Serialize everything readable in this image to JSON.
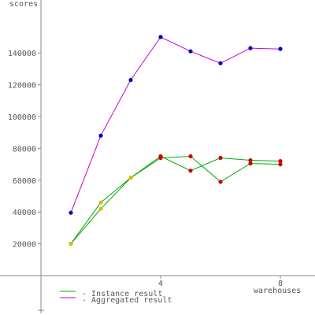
{
  "chart_data": {
    "type": "line",
    "title": "",
    "ylabel": "scores",
    "xlabel": "warehouses",
    "xlim": [
      0,
      9.5
    ],
    "ylim": [
      -20000,
      170000
    ],
    "x_ticks": [
      {
        "value": 4,
        "label": "4"
      },
      {
        "value": 8,
        "label": "8"
      }
    ],
    "y_ticks": [
      {
        "value": 20000,
        "label": "20000"
      },
      {
        "value": 40000,
        "label": "40000"
      },
      {
        "value": 60000,
        "label": "60000"
      },
      {
        "value": 80000,
        "label": "80000"
      },
      {
        "value": 100000,
        "label": "100000"
      },
      {
        "value": 120000,
        "label": "120000"
      },
      {
        "value": 140000,
        "label": "140000"
      }
    ],
    "series": [
      {
        "name": "Instance result",
        "color": "#00aa00",
        "kind": "instance",
        "values": [
          [
            [
              1,
              20000
            ],
            [
              2,
              46000
            ],
            [
              3,
              61500
            ],
            [
              4,
              75000
            ],
            [
              5,
              66000
            ],
            [
              6,
              74000
            ],
            [
              7,
              72500
            ],
            [
              8,
              72000
            ]
          ],
          [
            [
              1,
              20000
            ],
            [
              2,
              42000
            ],
            [
              3,
              61500
            ],
            [
              4,
              74000
            ],
            [
              5,
              75000
            ],
            [
              6,
              59000
            ],
            [
              7,
              70500
            ],
            [
              8,
              70000
            ]
          ]
        ]
      },
      {
        "name": "Aggregated result",
        "color": "#cc00cc",
        "kind": "aggregated",
        "values": [
          [
            1,
            39500
          ],
          [
            2,
            88000
          ],
          [
            3,
            123000
          ],
          [
            4,
            150000
          ],
          [
            5,
            141000
          ],
          [
            6,
            133500
          ],
          [
            7,
            143000
          ],
          [
            8,
            142500
          ]
        ]
      }
    ],
    "legend": {
      "placement": "bottom-left",
      "entries": [
        "- Instance result",
        "- Aggregated result"
      ]
    },
    "marker_colors": {
      "aggregated": "#0000cc",
      "below_peak": "#ddbb00",
      "at_or_above_peak": "#cc0000"
    }
  }
}
